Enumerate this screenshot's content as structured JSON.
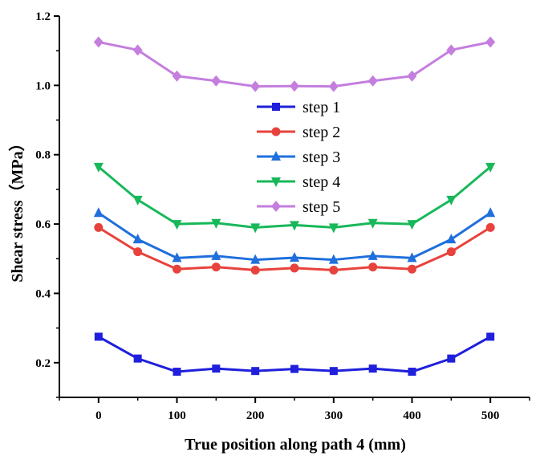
{
  "chart_data": {
    "type": "line",
    "title": "",
    "xlabel": "True position along path 4 (mm)",
    "ylabel": "Shear stress（MPa）",
    "xlim": [
      -50,
      550
    ],
    "ylim": [
      0.1,
      1.2
    ],
    "xticks": [
      0,
      100,
      200,
      300,
      400,
      500
    ],
    "yticks": [
      0.2,
      0.4,
      0.6,
      0.8,
      1.0,
      1.2
    ],
    "ytick_labels": [
      "0.2",
      "0.4",
      "0.6",
      "0.8",
      "1.0",
      "1.2"
    ],
    "x": [
      0,
      50,
      100,
      150,
      200,
      250,
      300,
      350,
      400,
      450,
      500
    ],
    "legend_position": "center",
    "series": [
      {
        "name": "step 1",
        "color": "#1f1fdc",
        "marker": "square",
        "values": [
          0.275,
          0.212,
          0.174,
          0.183,
          0.176,
          0.182,
          0.176,
          0.183,
          0.174,
          0.212,
          0.275
        ]
      },
      {
        "name": "step 2",
        "color": "#e8423c",
        "marker": "circle",
        "values": [
          0.59,
          0.52,
          0.47,
          0.476,
          0.467,
          0.473,
          0.467,
          0.476,
          0.47,
          0.52,
          0.59
        ]
      },
      {
        "name": "step 3",
        "color": "#1f6fdc",
        "marker": "triangle-up",
        "values": [
          0.632,
          0.556,
          0.502,
          0.508,
          0.497,
          0.503,
          0.497,
          0.508,
          0.502,
          0.556,
          0.632
        ]
      },
      {
        "name": "step 4",
        "color": "#18b85a",
        "marker": "triangle-down",
        "values": [
          0.765,
          0.67,
          0.6,
          0.603,
          0.59,
          0.597,
          0.59,
          0.603,
          0.6,
          0.67,
          0.765
        ]
      },
      {
        "name": "step 5",
        "color": "#c47ede",
        "marker": "diamond",
        "values": [
          1.125,
          1.102,
          1.027,
          1.013,
          0.997,
          0.998,
          0.997,
          1.013,
          1.027,
          1.102,
          1.125
        ]
      }
    ]
  }
}
